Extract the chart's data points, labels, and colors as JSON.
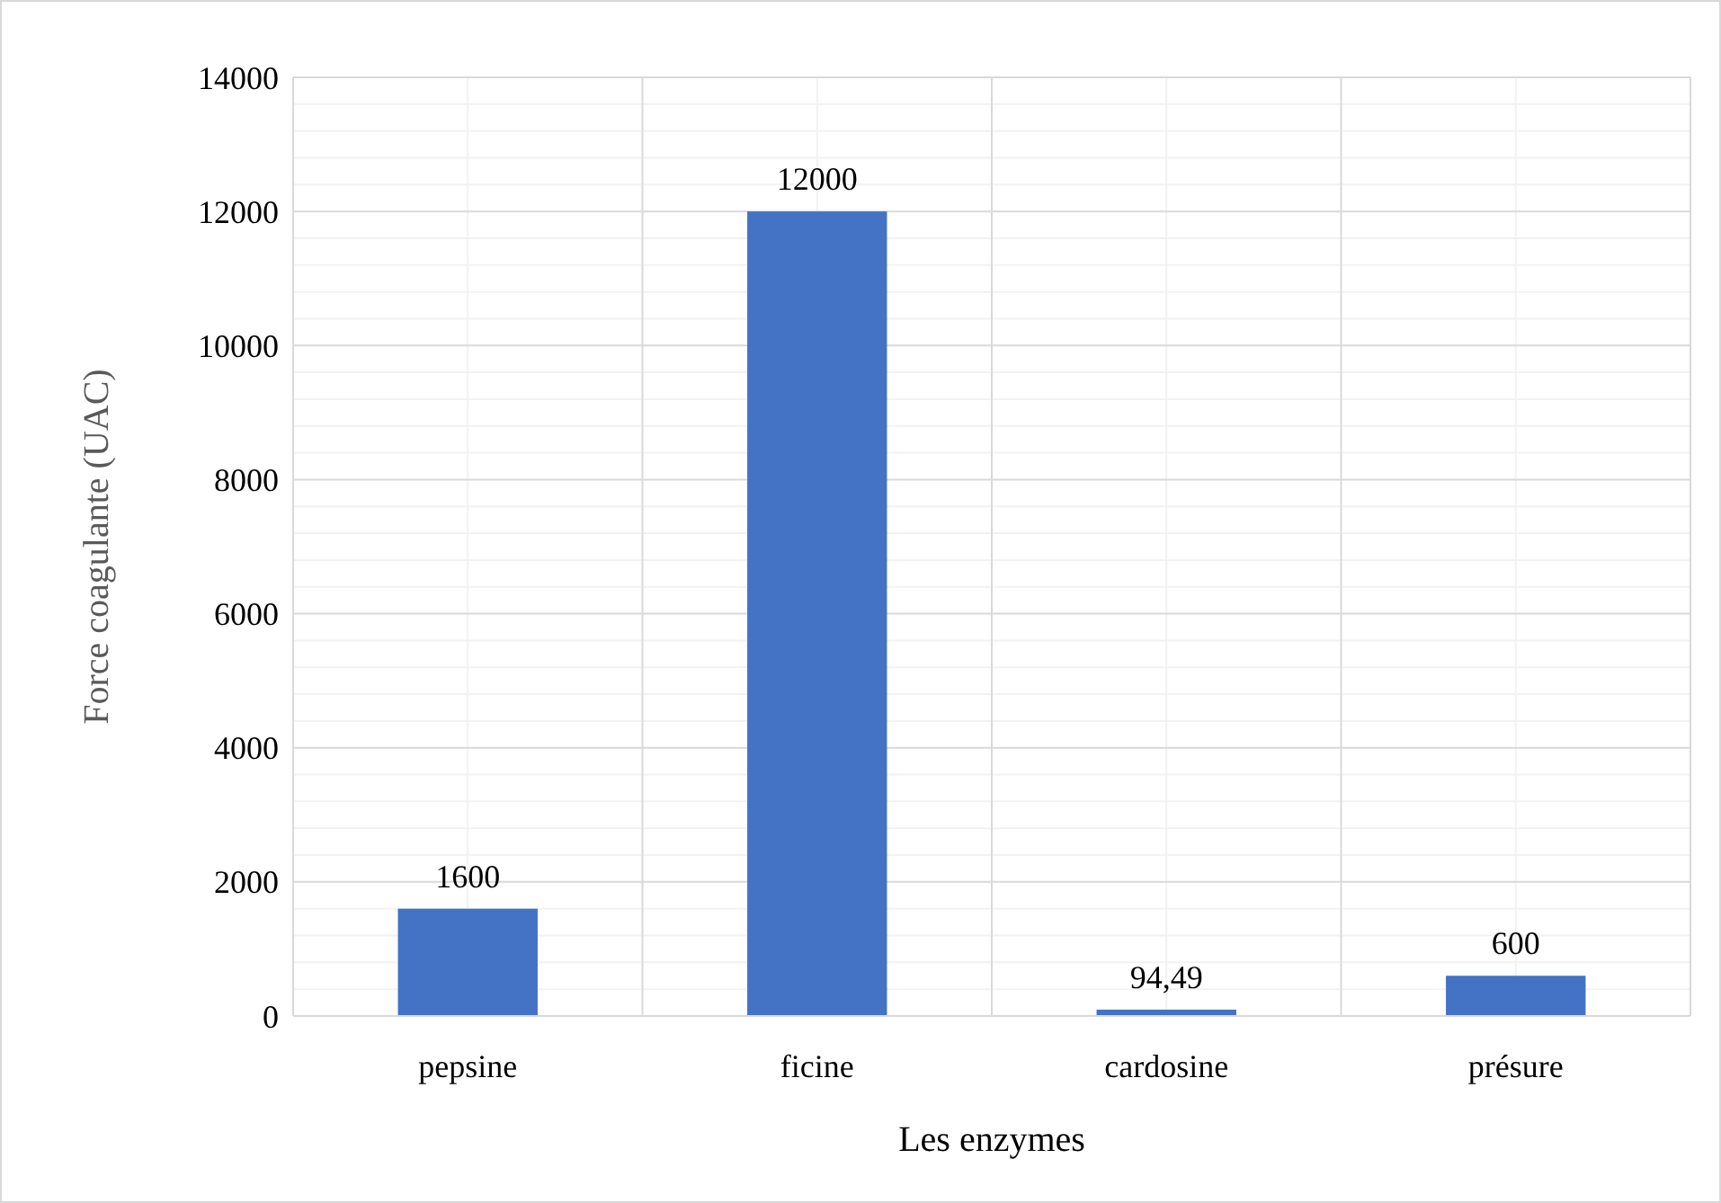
{
  "chart_data": {
    "type": "bar",
    "xlabel": "Les enzymes",
    "ylabel": "Force coagulante (UAC)",
    "categories": [
      "pepsine",
      "ficine",
      "cardosine",
      "présure"
    ],
    "values": [
      1600,
      12000,
      94.49,
      600
    ],
    "value_labels": [
      "1600",
      "12000",
      "94,49",
      "600"
    ],
    "color": "#4472c4",
    "ylim": [
      0,
      14000
    ],
    "yticks": [
      0,
      2000,
      4000,
      6000,
      8000,
      10000,
      12000,
      14000
    ],
    "grid": true
  }
}
